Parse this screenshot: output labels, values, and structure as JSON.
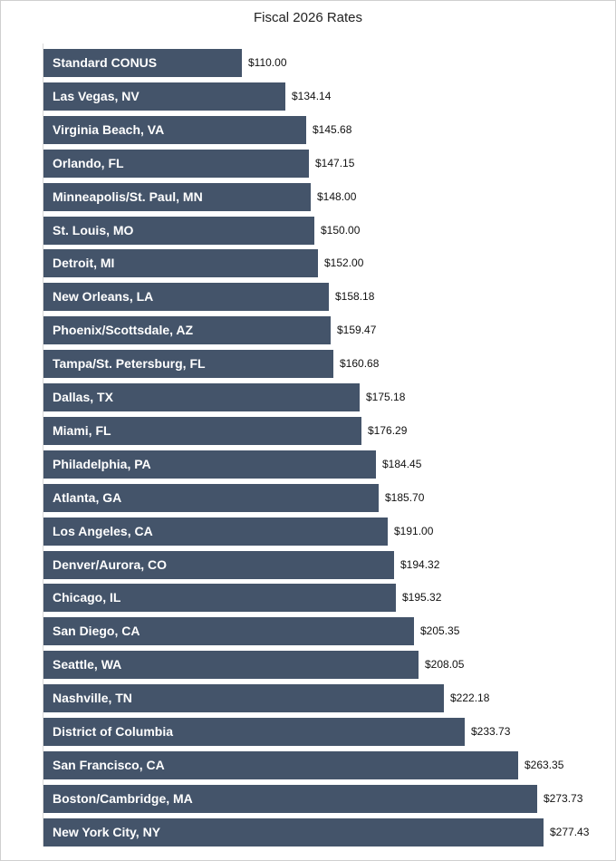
{
  "chart_data": {
    "type": "bar",
    "orientation": "horizontal",
    "title": "Fiscal 2026 Rates",
    "xlabel": "",
    "ylabel": "",
    "bar_color": "#44546a",
    "grid": false,
    "legend": "none",
    "xlim": [
      0,
      300
    ],
    "categories": [
      "Standard CONUS",
      "Las Vegas, NV",
      "Virginia Beach, VA",
      "Orlando, FL",
      "Minneapolis/St. Paul, MN",
      "St. Louis, MO",
      "Detroit, MI",
      "New Orleans, LA",
      "Phoenix/Scottsdale, AZ",
      "Tampa/St. Petersburg, FL",
      "Dallas, TX",
      "Miami, FL",
      "Philadelphia, PA",
      "Atlanta, GA",
      "Los Angeles, CA",
      "Denver/Aurora, CO",
      "Chicago, IL",
      "San Diego, CA",
      "Seattle, WA",
      "Nashville, TN",
      "District of Columbia",
      "San Francisco, CA",
      "Boston/Cambridge, MA",
      "New York City, NY"
    ],
    "values": [
      110.0,
      134.14,
      145.68,
      147.15,
      148.0,
      150.0,
      152.0,
      158.18,
      159.47,
      160.68,
      175.18,
      176.29,
      184.45,
      185.7,
      191.0,
      194.32,
      195.32,
      205.35,
      208.05,
      222.18,
      233.73,
      263.35,
      273.73,
      277.43
    ],
    "value_labels": [
      "$110.00",
      "$134.14",
      "$145.68",
      "$147.15",
      "$148.00",
      "$150.00",
      "$152.00",
      "$158.18",
      "$159.47",
      "$160.68",
      "$175.18",
      "$176.29",
      "$184.45",
      "$185.70",
      "$191.00",
      "$194.32",
      "$195.32",
      "$205.35",
      "$208.05",
      "$222.18",
      "$233.73",
      "$263.35",
      "$273.73",
      "$277.43"
    ]
  }
}
